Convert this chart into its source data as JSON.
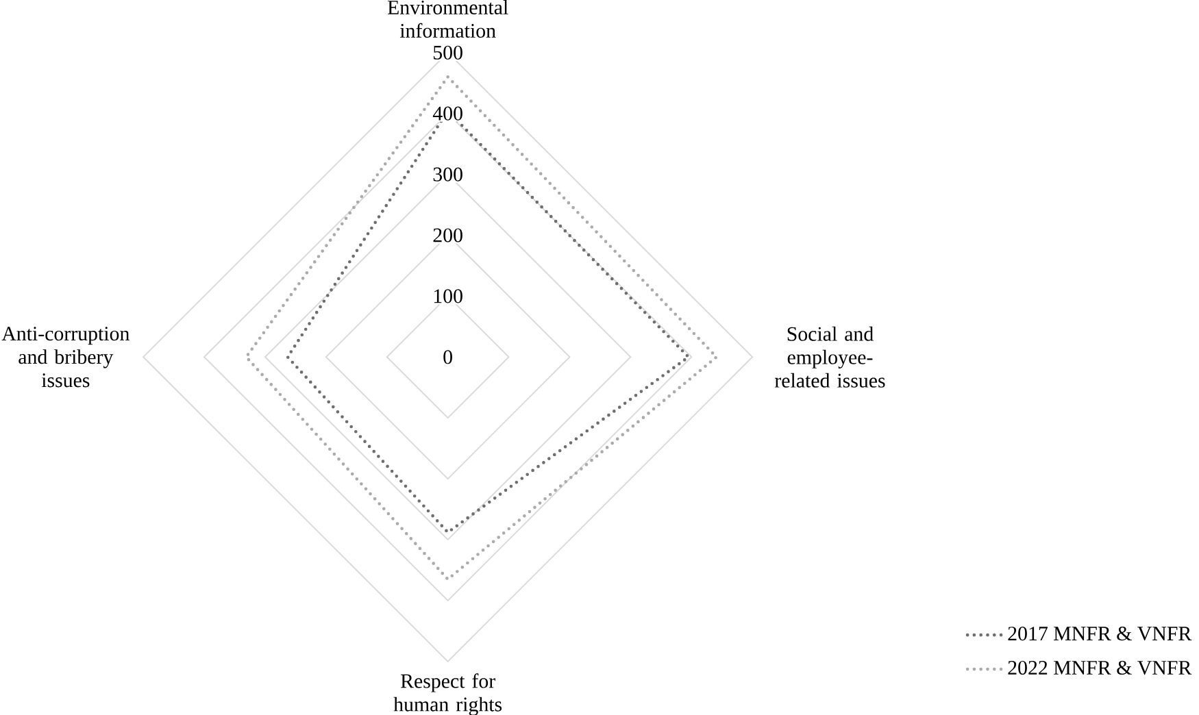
{
  "chart_data": {
    "type": "radar",
    "categories": [
      "Environmental information",
      "Social and employee-related issues",
      "Respect for human rights",
      "Anti-corruption and bribery issues"
    ],
    "series": [
      {
        "name": "2017 MNFR & VNFR",
        "color": "#6e6e6e",
        "values": [
          404,
          395,
          288,
          263
        ]
      },
      {
        "name": "2022 MNFR & VNFR",
        "color": "#ababab",
        "values": [
          460,
          441,
          365,
          331
        ]
      }
    ],
    "ylim": [
      0,
      500
    ],
    "yticks": [
      0,
      100,
      200,
      300,
      400,
      500
    ],
    "grid": true,
    "legend": "bottom right",
    "line_style": "dotted",
    "marker": "none"
  }
}
